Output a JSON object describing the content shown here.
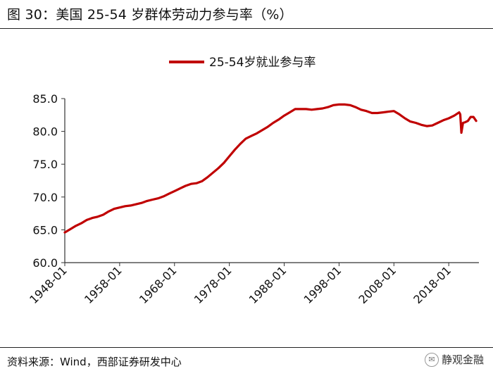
{
  "header": {
    "title": "图 30：美国 25-54 岁群体劳动力参与率（%）"
  },
  "footer": {
    "source": "资料来源：Wind，西部证券研发中心",
    "watermark": "静观金融"
  },
  "colors": {
    "series": "#c00000",
    "axis": "#333333"
  },
  "chart_data": {
    "type": "line",
    "title": "",
    "xlabel": "",
    "ylabel": "",
    "ylim": [
      60.0,
      85.0
    ],
    "yticks": [
      "60.0",
      "65.0",
      "70.0",
      "75.0",
      "80.0",
      "85.0"
    ],
    "xlim": [
      1948.0,
      2023.5
    ],
    "xticks": [
      "1948-01",
      "1958-01",
      "1968-01",
      "1978-01",
      "1988-01",
      "1998-01",
      "2008-01",
      "2018-01"
    ],
    "legend_position": "top-center",
    "grid": false,
    "series": [
      {
        "name": "25-54岁就业参与率",
        "x": [
          1948.0,
          1949.0,
          1950.0,
          1951.0,
          1952.0,
          1953.0,
          1954.0,
          1955.0,
          1956.0,
          1957.0,
          1958.0,
          1959.0,
          1960.0,
          1961.0,
          1962.0,
          1963.0,
          1964.0,
          1965.0,
          1966.0,
          1967.0,
          1968.0,
          1969.0,
          1970.0,
          1971.0,
          1972.0,
          1973.0,
          1974.0,
          1975.0,
          1976.0,
          1977.0,
          1978.0,
          1979.0,
          1980.0,
          1981.0,
          1982.0,
          1983.0,
          1984.0,
          1985.0,
          1986.0,
          1987.0,
          1988.0,
          1989.0,
          1990.0,
          1991.0,
          1992.0,
          1993.0,
          1994.0,
          1995.0,
          1996.0,
          1997.0,
          1998.0,
          1999.0,
          2000.0,
          2001.0,
          2002.0,
          2003.0,
          2004.0,
          2005.0,
          2006.0,
          2007.0,
          2008.0,
          2009.0,
          2010.0,
          2011.0,
          2012.0,
          2013.0,
          2014.0,
          2015.0,
          2016.0,
          2017.0,
          2018.0,
          2019.0,
          2019.9,
          2020.1,
          2020.3,
          2020.6,
          2021.0,
          2021.5,
          2022.0,
          2022.5,
          2023.0
        ],
        "y": [
          64.6,
          65.1,
          65.6,
          66.0,
          66.5,
          66.8,
          67.0,
          67.3,
          67.8,
          68.2,
          68.4,
          68.6,
          68.7,
          68.9,
          69.1,
          69.4,
          69.6,
          69.8,
          70.1,
          70.5,
          70.9,
          71.3,
          71.7,
          72.0,
          72.1,
          72.4,
          73.0,
          73.7,
          74.4,
          75.2,
          76.2,
          77.2,
          78.1,
          78.9,
          79.3,
          79.7,
          80.2,
          80.7,
          81.3,
          81.8,
          82.4,
          82.9,
          83.4,
          83.4,
          83.4,
          83.3,
          83.4,
          83.5,
          83.7,
          84.0,
          84.1,
          84.1,
          84.0,
          83.7,
          83.3,
          83.1,
          82.8,
          82.8,
          82.9,
          83.0,
          83.1,
          82.6,
          82.0,
          81.5,
          81.3,
          81.0,
          80.8,
          80.9,
          81.3,
          81.7,
          82.0,
          82.4,
          82.9,
          82.6,
          79.8,
          81.3,
          81.4,
          81.6,
          82.2,
          82.2,
          81.6
        ]
      }
    ]
  }
}
